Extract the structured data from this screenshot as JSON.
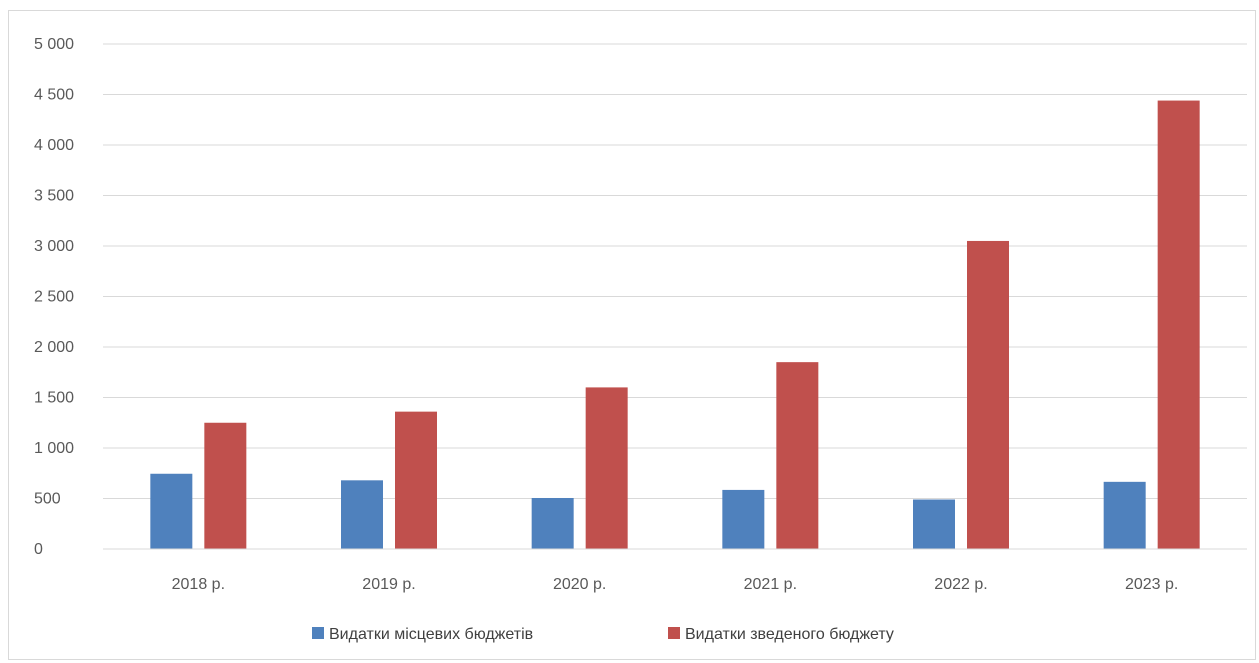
{
  "chart_data": {
    "type": "bar",
    "categories": [
      "2018 р.",
      "2019 р.",
      "2020 р.",
      "2021 р.",
      "2022 р.",
      "2023 р."
    ],
    "series": [
      {
        "name": "Видатки місцевих бюджетів",
        "color": "#4f81bd",
        "values": [
          745,
          680,
          505,
          585,
          490,
          665
        ]
      },
      {
        "name": "Видатки зведеного бюджету",
        "color": "#c0504d",
        "values": [
          1250,
          1360,
          1600,
          1850,
          3050,
          4440
        ]
      }
    ],
    "ylim": [
      0,
      5000
    ],
    "yticks": [
      {
        "value": 0,
        "label": "0"
      },
      {
        "value": 500,
        "label": "500"
      },
      {
        "value": 1000,
        "label": "1 000"
      },
      {
        "value": 1500,
        "label": "1 500"
      },
      {
        "value": 2000,
        "label": "2 000"
      },
      {
        "value": 2500,
        "label": "2 500"
      },
      {
        "value": 3000,
        "label": "3 000"
      },
      {
        "value": 3500,
        "label": "3 500"
      },
      {
        "value": 4000,
        "label": "4 000"
      },
      {
        "value": 4500,
        "label": "4 500"
      },
      {
        "value": 5000,
        "label": "5 000"
      }
    ],
    "grid": true,
    "gridline_color": "#d9d9d9",
    "legend_position": "bottom",
    "title": "",
    "xlabel": "",
    "ylabel": ""
  }
}
